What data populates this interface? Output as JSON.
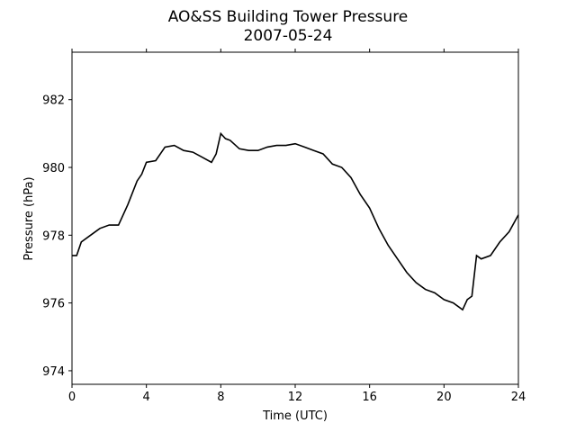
{
  "chart_data": {
    "type": "line",
    "title": "AO&SS Building Tower Pressure",
    "subtitle": "2007-05-24",
    "x_label": "Time (UTC)",
    "y_label": "Pressure (hPa)",
    "x": [
      0,
      0.25,
      0.5,
      1,
      1.5,
      2,
      2.5,
      3,
      3.5,
      3.75,
      4,
      4.5,
      5,
      5.5,
      6,
      6.5,
      7,
      7.5,
      7.75,
      8,
      8.25,
      8.5,
      9,
      9.5,
      10,
      10.5,
      11,
      11.5,
      12,
      12.5,
      13,
      13.5,
      14,
      14.5,
      15,
      15.5,
      16,
      16.5,
      17,
      17.5,
      18,
      18.5,
      19,
      19.5,
      20,
      20.5,
      21,
      21.25,
      21.5,
      21.75,
      22,
      22.5,
      23,
      23.5,
      24
    ],
    "series": [
      {
        "name": "Pressure",
        "color": "#000000",
        "values": [
          977.4,
          977.4,
          977.8,
          978.0,
          978.2,
          978.3,
          978.3,
          978.9,
          979.6,
          979.8,
          980.15,
          980.2,
          980.6,
          980.65,
          980.5,
          980.45,
          980.3,
          980.15,
          980.4,
          981.0,
          980.85,
          980.8,
          980.55,
          980.5,
          980.5,
          980.6,
          980.65,
          980.65,
          980.7,
          980.6,
          980.5,
          980.4,
          980.1,
          980.0,
          979.7,
          979.2,
          978.8,
          978.2,
          977.7,
          977.3,
          976.9,
          976.6,
          976.4,
          976.3,
          976.1,
          976.0,
          975.8,
          976.1,
          976.2,
          977.4,
          977.3,
          977.4,
          977.8,
          978.1,
          978.6
        ]
      }
    ],
    "xlim": [
      0,
      24
    ],
    "xticks": [
      0,
      4,
      8,
      12,
      16,
      20,
      24
    ],
    "ylim": [
      973.6,
      983.4
    ],
    "yticks": [
      974,
      976,
      978,
      980,
      982
    ]
  }
}
